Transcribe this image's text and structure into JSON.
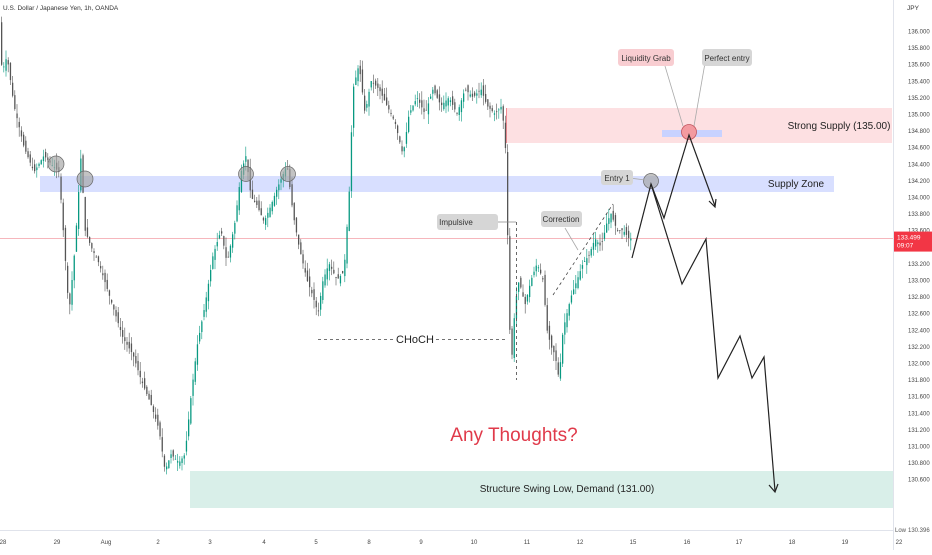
{
  "symbol_title": "U.S. Dollar / Japanese Yen, 1h, OANDA",
  "currency_label": "JPY",
  "price_badge": {
    "price": "133.499",
    "countdown": "09:07",
    "color": "#f23645"
  },
  "low_label": "Low",
  "low_value": "130.396",
  "colors": {
    "up": "#089981",
    "down": "#555555",
    "supply": "#c8d2ff",
    "strong_supply": "#fde0e2",
    "demand": "#d9efe9",
    "accent_red": "#e03a4a",
    "current_line": "#f28b93"
  },
  "annotations": {
    "liquidity_grab": "Liquidity Grab",
    "perfect_entry": "Perfect entry",
    "strong_supply": "Strong Supply (135.00)",
    "supply_zone": "Supply Zone",
    "entry1": "Entry 1",
    "impulsive": "Impulsive",
    "correction": "Correction",
    "choch": "CHoCH",
    "any_thoughts": "Any Thoughts?",
    "demand": "Structure Swing Low, Demand (131.00)"
  },
  "chart_data": {
    "type": "candlestick",
    "title": "U.S. Dollar / Japanese Yen, 1h, OANDA",
    "y_unit": "JPY",
    "ylim": [
      130.396,
      136.2
    ],
    "y_ticks": [
      "136.000",
      "135.800",
      "135.600",
      "135.400",
      "135.200",
      "135.000",
      "134.800",
      "134.600",
      "134.400",
      "134.200",
      "134.000",
      "133.800",
      "133.600",
      "133.400",
      "133.200",
      "133.000",
      "132.800",
      "132.600",
      "132.400",
      "132.200",
      "132.000",
      "131.800",
      "131.600",
      "131.400",
      "131.200",
      "131.000",
      "130.800",
      "130.600"
    ],
    "x_ticks": [
      "28",
      "29",
      "Aug",
      "2",
      "3",
      "4",
      "5",
      "8",
      "9",
      "10",
      "11",
      "12",
      "15",
      "16",
      "17",
      "18",
      "19",
      "22"
    ],
    "zones": [
      {
        "name": "Strong Supply (135.00)",
        "from": 134.75,
        "to": 135.15
      },
      {
        "name": "Supply Zone",
        "from": 134.22,
        "to": 134.42
      },
      {
        "name": "Structure Swing Low, Demand (131.00)",
        "from": 130.68,
        "to": 131.1
      }
    ],
    "current_price": 133.499,
    "choch_level": 132.55,
    "price_path": [
      [
        0,
        136.2
      ],
      [
        3,
        135.5
      ],
      [
        8,
        135.7
      ],
      [
        15,
        135.1
      ],
      [
        25,
        134.6
      ],
      [
        35,
        134.3
      ],
      [
        45,
        134.5
      ],
      [
        52,
        134.4
      ],
      [
        60,
        134.3
      ],
      [
        66,
        133.3
      ],
      [
        70,
        132.6
      ],
      [
        76,
        133.4
      ],
      [
        82,
        134.5
      ],
      [
        86,
        133.6
      ],
      [
        92,
        133.4
      ],
      [
        100,
        133.2
      ],
      [
        108,
        132.9
      ],
      [
        116,
        132.6
      ],
      [
        124,
        132.3
      ],
      [
        134,
        132.1
      ],
      [
        142,
        131.8
      ],
      [
        152,
        131.5
      ],
      [
        160,
        131.2
      ],
      [
        166,
        130.7
      ],
      [
        172,
        130.9
      ],
      [
        180,
        130.8
      ],
      [
        186,
        130.9
      ],
      [
        192,
        131.6
      ],
      [
        198,
        132.2
      ],
      [
        206,
        132.7
      ],
      [
        214,
        133.3
      ],
      [
        222,
        133.6
      ],
      [
        228,
        133.2
      ],
      [
        236,
        133.7
      ],
      [
        242,
        134.3
      ],
      [
        247,
        134.5
      ],
      [
        252,
        134.0
      ],
      [
        258,
        133.9
      ],
      [
        265,
        133.7
      ],
      [
        272,
        133.9
      ],
      [
        278,
        134.1
      ],
      [
        285,
        134.3
      ],
      [
        288,
        134.4
      ],
      [
        294,
        133.8
      ],
      [
        300,
        133.4
      ],
      [
        308,
        133.0
      ],
      [
        314,
        132.8
      ],
      [
        319,
        132.6
      ],
      [
        324,
        133.0
      ],
      [
        330,
        133.2
      ],
      [
        338,
        133.0
      ],
      [
        345,
        133.1
      ],
      [
        350,
        134.0
      ],
      [
        354,
        135.3
      ],
      [
        360,
        135.6
      ],
      [
        366,
        135.0
      ],
      [
        372,
        135.4
      ],
      [
        380,
        135.3
      ],
      [
        388,
        135.1
      ],
      [
        396,
        134.9
      ],
      [
        404,
        134.5
      ],
      [
        410,
        135.0
      ],
      [
        418,
        135.2
      ],
      [
        426,
        135.0
      ],
      [
        434,
        135.3
      ],
      [
        442,
        135.1
      ],
      [
        450,
        135.2
      ],
      [
        458,
        135.0
      ],
      [
        466,
        135.3
      ],
      [
        474,
        135.2
      ],
      [
        482,
        135.3
      ],
      [
        488,
        135.1
      ],
      [
        496,
        135.0
      ],
      [
        503,
        135.1
      ],
      [
        507,
        134.5
      ],
      [
        509,
        133.3
      ],
      [
        511,
        132.3
      ],
      [
        513,
        132.1
      ],
      [
        516,
        132.7
      ],
      [
        520,
        133.0
      ],
      [
        526,
        132.7
      ],
      [
        532,
        133.0
      ],
      [
        538,
        133.2
      ],
      [
        544,
        133.0
      ],
      [
        548,
        132.4
      ],
      [
        552,
        132.2
      ],
      [
        556,
        132.1
      ],
      [
        560,
        131.8
      ],
      [
        564,
        132.4
      ],
      [
        568,
        132.6
      ],
      [
        572,
        132.8
      ],
      [
        578,
        133.0
      ],
      [
        584,
        133.2
      ],
      [
        590,
        133.3
      ],
      [
        596,
        133.5
      ],
      [
        602,
        133.4
      ],
      [
        608,
        133.7
      ],
      [
        612,
        133.8
      ],
      [
        618,
        133.6
      ],
      [
        624,
        133.6
      ],
      [
        630,
        133.5
      ]
    ]
  }
}
